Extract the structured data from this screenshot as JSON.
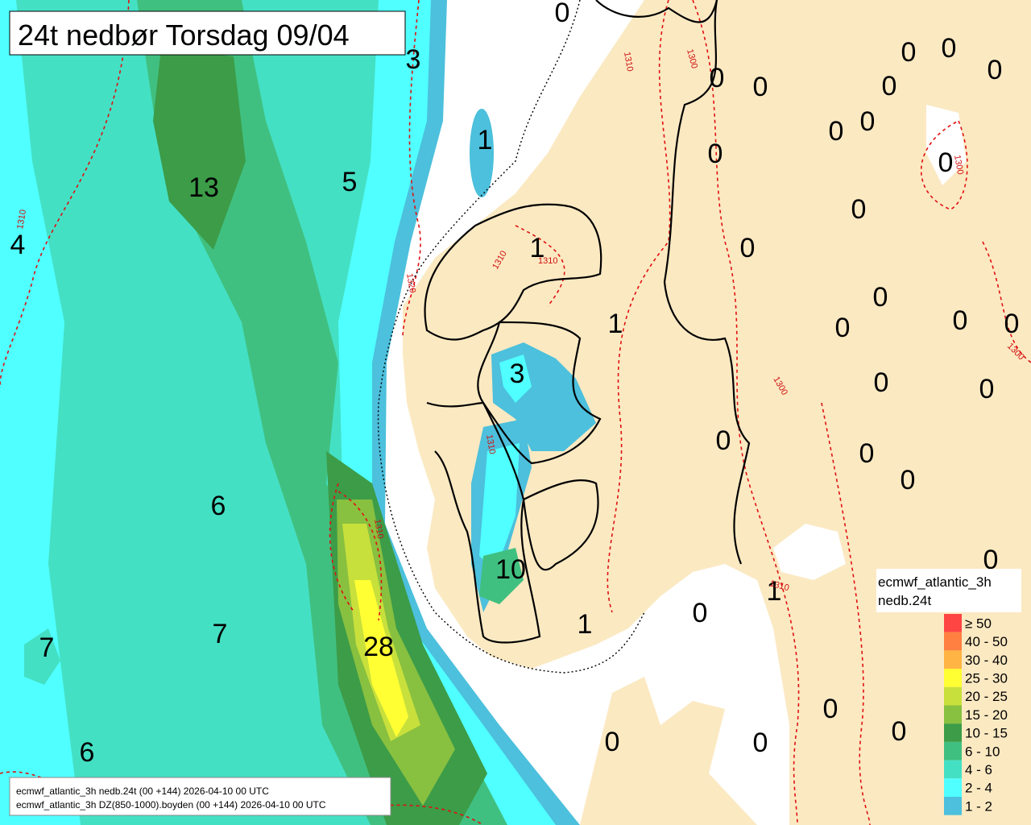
{
  "title": "24t nedbør Torsdag 09/04",
  "map_labels": [
    0,
    3,
    1,
    13,
    5,
    4,
    0,
    0,
    0,
    0,
    0,
    0,
    0,
    0,
    0,
    0,
    0,
    0,
    1,
    0,
    0,
    0,
    0,
    1,
    3,
    0,
    0,
    0,
    0,
    0,
    6,
    10,
    0,
    1,
    0,
    1,
    7,
    7,
    28,
    0,
    0,
    0,
    0,
    6
  ],
  "contour_labels": [
    1310,
    1300,
    1310,
    1300,
    1320,
    1310,
    1310,
    1310,
    1310,
    1300,
    1300,
    1310
  ],
  "legend": {
    "title": "ecmwf_atlantic_3h",
    "subtitle": "nedb.24t",
    "entries": [
      {
        "label": "≥ 50",
        "color": "#ff4444"
      },
      {
        "label": "40 - 50",
        "color": "#ff8040"
      },
      {
        "label": "30 - 40",
        "color": "#ffb444"
      },
      {
        "label": "25 - 30",
        "color": "#ffff33"
      },
      {
        "label": "20 - 25",
        "color": "#c8e03c"
      },
      {
        "label": "15 - 20",
        "color": "#88c040"
      },
      {
        "label": "10 - 15",
        "color": "#3c9c48"
      },
      {
        "label": "6 - 10",
        "color": "#40c080"
      },
      {
        "label": "4 - 6",
        "color": "#44e0c4"
      },
      {
        "label": "2 - 4",
        "color": "#50ffff"
      },
      {
        "label": "1 - 2",
        "color": "#4cc0dc"
      }
    ]
  },
  "footer": [
    "ecmwf_atlantic_3h nedb.24t (00 +144) 2026-04-10 00 UTC",
    "ecmwf_atlantic_3h DZ(850-1000).boyden (00 +144) 2026-04-10 00 UTC"
  ]
}
